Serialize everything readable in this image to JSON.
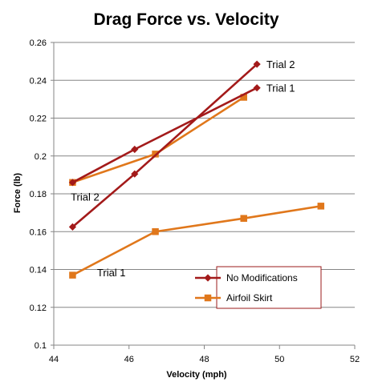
{
  "chart_data": {
    "type": "scatter",
    "title": "Drag Force vs. Velocity",
    "xlabel": "Velocity (mph)",
    "ylabel": "Force (lb)",
    "xlim": [
      44,
      52
    ],
    "ylim": [
      0.1,
      0.26
    ],
    "x_ticks": [
      "44",
      "46",
      "48",
      "50",
      "52"
    ],
    "y_ticks": [
      "0.1",
      "0.12",
      "0.14",
      "0.16",
      "0.18",
      "0.2",
      "0.22",
      "0.24",
      "0.26"
    ],
    "grid": "horizontal",
    "legend_position": "lower-right",
    "series": [
      {
        "name": "No Modifications",
        "color": "#A31A1A",
        "marker": "diamond",
        "lines": [
          {
            "label": "Trial 1",
            "points": [
              [
                44.5,
                0.186
              ],
              [
                46.15,
                0.2035
              ],
              [
                49.4,
                0.236
              ]
            ]
          },
          {
            "label": "Trial 2",
            "points": [
              [
                44.5,
                0.1625
              ],
              [
                46.15,
                0.1905
              ],
              [
                49.4,
                0.2485
              ]
            ]
          }
        ]
      },
      {
        "name": "Airfoil Skirt",
        "color": "#E0771B",
        "marker": "square",
        "lines": [
          {
            "label": "Trial 1",
            "points": [
              [
                44.5,
                0.137
              ],
              [
                46.7,
                0.16
              ],
              [
                49.05,
                0.167
              ],
              [
                51.1,
                0.1735
              ]
            ]
          },
          {
            "label": "Trial 2",
            "points": [
              [
                44.5,
                0.186
              ],
              [
                46.7,
                0.201
              ],
              [
                49.05,
                0.231
              ]
            ]
          }
        ]
      }
    ],
    "annotations": [
      {
        "text": "Trial 2",
        "x": 49.65,
        "y": 0.2485
      },
      {
        "text": "Trial 1",
        "x": 49.65,
        "y": 0.236
      },
      {
        "text": "Trial 2",
        "x": 44.45,
        "y": 0.1785
      },
      {
        "text": "Trial 1",
        "x": 45.15,
        "y": 0.1385
      }
    ]
  }
}
